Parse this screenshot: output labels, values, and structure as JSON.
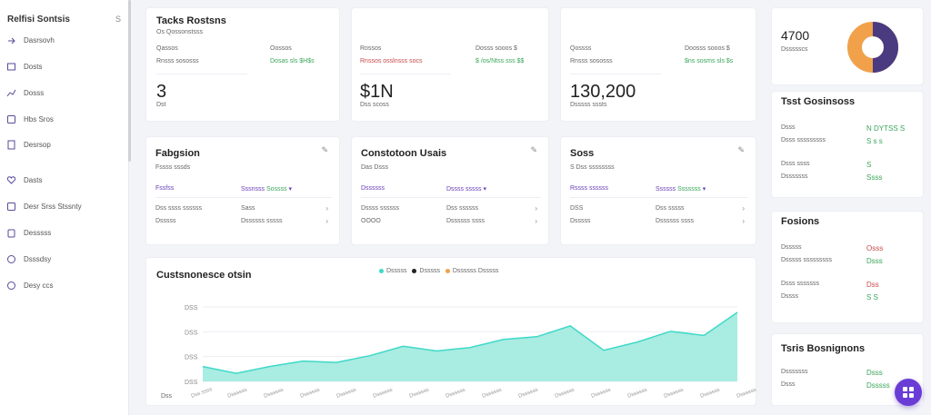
{
  "sidebar": {
    "title": "Relfisi Sontsis",
    "badge": "S",
    "items": [
      {
        "label": "Dasrsovh",
        "icon": "link-icon"
      },
      {
        "label": "Dosts",
        "icon": "calendar-icon"
      },
      {
        "label": "Dosss",
        "icon": "chart-icon"
      },
      {
        "label": "Hbs Sros",
        "icon": "book-icon"
      },
      {
        "label": "Desrsop",
        "icon": "document-icon"
      },
      {
        "label": "Dasts",
        "icon": "heart-icon"
      },
      {
        "label": "Desr Srss Stssnty",
        "icon": "book-icon"
      },
      {
        "label": "Desssss",
        "icon": "clipboard-icon"
      },
      {
        "label": "Dsssdsy",
        "icon": "globe-icon"
      },
      {
        "label": "Desy ccs",
        "icon": "circle-icon"
      }
    ]
  },
  "stat_cards": [
    {
      "title": "Tacks Rostsns",
      "subtitle": "Os Qossonstsss",
      "left_label": "Qassos",
      "left_sub": "Rnsss sososss",
      "right_label": "Oossos",
      "right_sub": "Dosas sls $H$s",
      "value": "3",
      "value_sub": "Dst"
    },
    {
      "title": "",
      "subtitle": "",
      "left_label": "Rossos",
      "left_sub": "Rnssos osslnsss socs",
      "right_label": "Dosss sooos $",
      "right_sub": "$ /os/Ntss sss $$",
      "value": "$1N",
      "value_sub": "Dss scoss"
    },
    {
      "title": "",
      "subtitle": "",
      "left_label": "Qossss",
      "left_sub": "Rnsss sososss",
      "right_label": "Doosss sooos $",
      "right_sub": "$ns sosms sls $s",
      "value": "130,200",
      "value_sub": "Dsssss sssts"
    }
  ],
  "donut": {
    "value": "4700",
    "label": "Dssssscs",
    "colors": [
      "#f0a14a",
      "#4a3a80"
    ]
  },
  "tables": [
    {
      "title": "Fabgsion",
      "subtitle": "Fssss sssds",
      "col1": "Fssfss",
      "col2": "Sssnsss",
      "col2_tag": "Sossss",
      "rows": [
        [
          "Dss ssss ssssss",
          "Sass"
        ],
        [
          "Dsssss",
          "Dssssss sssss"
        ]
      ]
    },
    {
      "title": "Constotoon Usais",
      "subtitle": "Das Dsss",
      "col1": "Dssssss",
      "col2": "Dssss sssss",
      "col2_tag": "",
      "rows": [
        [
          "Dssss ssssss",
          "Dss ssssss"
        ],
        [
          "OOOO",
          "Dssssss ssss"
        ]
      ]
    },
    {
      "title": "Soss",
      "subtitle": "S Dss ssssssss",
      "col1": "Rssss ssssss",
      "col2": "Ssssss",
      "col2_tag": "Sssssss",
      "rows": [
        [
          "DSS",
          "Dss sssss"
        ],
        [
          "Dsssss",
          "Dssssss ssss"
        ]
      ]
    }
  ],
  "right_panels": [
    {
      "title": "Tsst Gosinsoss",
      "rows": [
        [
          "Dsss",
          "N DYTSS S"
        ],
        [
          "Dsss sssssssss",
          "S s s"
        ],
        [
          "Dsss ssss",
          "S"
        ],
        [
          "Dsssssss",
          "Ssss"
        ]
      ]
    },
    {
      "title": "Fosions",
      "rows": [
        [
          "Dsssss",
          "Osss"
        ],
        [
          "Dsssss sssssssss",
          "Dsss"
        ],
        [
          "Dsss sssssss",
          "Dss"
        ],
        [
          "Dssss",
          "S S"
        ]
      ]
    },
    {
      "title": "Tsris Bosnignons",
      "rows": [
        [
          "Dsssssss",
          "Dsss"
        ],
        [
          "Dsss",
          "Dsssss"
        ]
      ]
    }
  ],
  "chart": {
    "title": "Custsnonesce otsin",
    "legend": [
      {
        "name": "Dsssss",
        "color": "#3ed9c8"
      },
      {
        "name": "Dsssss",
        "color": "#222222"
      },
      {
        "name": "Dssssss Dsssss",
        "color": "#f0a14a"
      }
    ],
    "y_ticks": [
      "DSS",
      "DSS",
      "DSS",
      "DSS"
    ],
    "x_labels": [
      "Dss ssss",
      "Dssssss",
      "Dssssss",
      "Dssssss",
      "Dssssss",
      "Dssssss",
      "Dssssss",
      "Dssssss",
      "Dssssss",
      "Dssssss",
      "Dssssss",
      "Dssssss",
      "Dssssss",
      "Dssssss",
      "Dssssss",
      "Dssssss"
    ],
    "x_first": "Dss",
    "chart_data": {
      "type": "area",
      "values": [
        22,
        12,
        22,
        30,
        28,
        38,
        52,
        45,
        50,
        62,
        66,
        82,
        46,
        58,
        74,
        68,
        102
      ]
    }
  },
  "fab": {
    "icon": "grid-icon"
  }
}
